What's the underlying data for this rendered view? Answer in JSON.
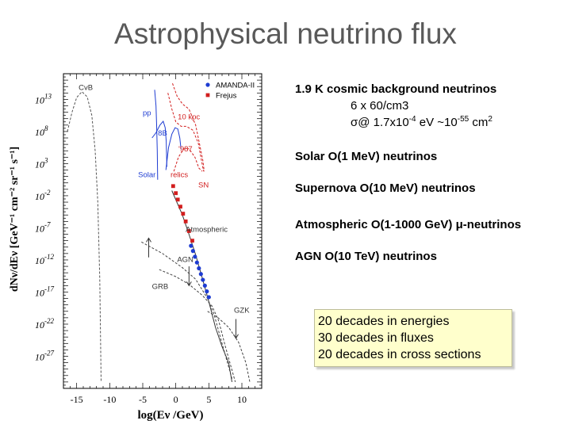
{
  "slide": {
    "title": "Astrophysical neutrino flux"
  },
  "notes": {
    "cosmic": {
      "heading": "1.9 K cosmic background neutrinos",
      "line1": "6 x 60/cm3",
      "line2_prefix": "σ@ 1.7x10",
      "line2_exp1": "-4",
      "line2_mid": " eV ~10",
      "line2_exp2": "-55",
      "line2_suffix": " cm",
      "line2_exp3": "2"
    },
    "solar": "Solar O(1 MeV) neutrinos",
    "supernova": "Supernova O(10 MeV) neutrinos",
    "atmospheric": "Atmospheric O(1-1000 GeV) μ-neutrinos",
    "agn": "AGN O(10 TeV) neutrinos"
  },
  "callout": {
    "line1": "20 decades in energies",
    "line2": "30 decades in fluxes",
    "line3": "20 decades in cross sections"
  },
  "colors": {
    "title": "#595959",
    "blue": "#1e3cd2",
    "red": "#d21e1e",
    "callout_bg": "#ffffcc"
  },
  "chart_data": {
    "type": "line",
    "xlabel": "log(Eν /GeV)",
    "ylabel": "dNν/dEν [GeV⁻¹ cm⁻² sr⁻¹ s⁻¹]",
    "xlim": [
      -17,
      13
    ],
    "ylim": [
      -32,
      17
    ],
    "xticks": [
      -15,
      -10,
      -5,
      0,
      5,
      10
    ],
    "yticks": [
      {
        "value": 13,
        "mantissa": "10",
        "exp": "13"
      },
      {
        "value": 8,
        "mantissa": "10",
        "exp": "8"
      },
      {
        "value": 3,
        "mantissa": "10",
        "exp": "3"
      },
      {
        "value": -2,
        "mantissa": "10",
        "exp": "-2"
      },
      {
        "value": -7,
        "mantissa": "10",
        "exp": "-7"
      },
      {
        "value": -12,
        "mantissa": "10",
        "exp": "-12"
      },
      {
        "value": -17,
        "mantissa": "10",
        "exp": "-17"
      },
      {
        "value": -22,
        "mantissa": "10",
        "exp": "-22"
      },
      {
        "value": -27,
        "mantissa": "10",
        "exp": "-27"
      }
    ],
    "legend_position": "top-right",
    "legend": [
      {
        "name": "AMANDA-II",
        "marker": "circle",
        "color": "#1e3cd2"
      },
      {
        "name": "Frejus",
        "marker": "square",
        "color": "#d21e1e"
      }
    ],
    "curves": [
      {
        "label": "CvB",
        "color": "#555555",
        "dash": "3,2",
        "points": [
          [
            -16.4,
            8
          ],
          [
            -15.7,
            11
          ],
          [
            -15.0,
            13.3
          ],
          [
            -14.2,
            14.2
          ],
          [
            -13.4,
            13.4
          ],
          [
            -12.7,
            10.5
          ],
          [
            -12.2,
            5
          ],
          [
            -11.8,
            -3
          ],
          [
            -11.5,
            -15
          ],
          [
            -11.3,
            -31
          ]
        ]
      },
      {
        "label": "Solar",
        "color": "#1e3cd2",
        "dash": "",
        "points": [
          [
            -3.6,
            7.0
          ],
          [
            -3.0,
            7.8
          ],
          [
            -2.4,
            9.0
          ],
          [
            -1.9,
            9.6
          ],
          [
            -1.6,
            8.6
          ],
          [
            -1.45,
            6.5
          ],
          [
            -1.35,
            2.5
          ]
        ]
      },
      {
        "label": "pp",
        "color": "#1e3cd2",
        "dash": "",
        "points": [
          [
            -3.2,
            14.5
          ],
          [
            -3.0,
            12.0
          ],
          [
            -2.9,
            9.0
          ],
          [
            -2.8,
            5.0
          ],
          [
            -2.75,
            0.5
          ]
        ]
      },
      {
        "label": "8B",
        "color": "#1e3cd2",
        "dash": "",
        "points": [
          [
            -1.5,
            2
          ],
          [
            -1.1,
            5.5
          ],
          [
            -0.6,
            7.6
          ],
          [
            -0.1,
            8.6
          ],
          [
            0.3,
            8.4
          ],
          [
            0.6,
            7.0
          ],
          [
            0.8,
            5.2
          ]
        ]
      },
      {
        "label": "10 kpc",
        "color": "#d21e1e",
        "dash": "3,2",
        "points": [
          [
            -1.2,
            14
          ],
          [
            -0.6,
            11.5
          ],
          [
            0.0,
            9.5
          ],
          [
            0.8,
            8.8
          ],
          [
            1.6,
            8.8
          ],
          [
            2.6,
            8.2
          ],
          [
            3.4,
            6.2
          ],
          [
            3.8,
            4.0
          ],
          [
            4.2,
            1.8
          ]
        ]
      },
      {
        "label": "987",
        "color": "#d21e1e",
        "dash": "3,2",
        "points": [
          [
            -0.5,
            15.5
          ],
          [
            0.2,
            13.5
          ],
          [
            1.0,
            12.3
          ],
          [
            2.0,
            11.5
          ],
          [
            3.0,
            9.0
          ],
          [
            3.6,
            6.0
          ],
          [
            4.1,
            3.5
          ],
          [
            4.3,
            1.8
          ]
        ]
      },
      {
        "label": "relics",
        "color": "#d21e1e",
        "dash": "3,2",
        "points": [
          [
            -0.3,
            1.8
          ],
          [
            0.4,
            4.0
          ],
          [
            1.2,
            5.3
          ],
          [
            2.0,
            5.3
          ],
          [
            2.9,
            4.0
          ],
          [
            3.5,
            2.3
          ],
          [
            4.0,
            1.8
          ]
        ]
      },
      {
        "label": "Atmospheric",
        "color": "#333333",
        "dash": "",
        "points": [
          [
            -0.6,
            -1.2
          ],
          [
            1.0,
            -5.0
          ],
          [
            2.0,
            -8.0
          ],
          [
            3.0,
            -11.2
          ],
          [
            4.0,
            -14.8
          ],
          [
            5.0,
            -18.5
          ],
          [
            6.0,
            -22.5
          ],
          [
            7.0,
            -25.5
          ],
          [
            8.0,
            -28
          ],
          [
            8.5,
            -31
          ]
        ]
      },
      {
        "label": "GRB",
        "color": "#444444",
        "dash": "3,2",
        "points": [
          [
            -5.2,
            -9.2
          ],
          [
            -2.0,
            -11.0
          ],
          [
            1.0,
            -13.2
          ],
          [
            3.0,
            -15.0
          ],
          [
            4.8,
            -18.0
          ],
          [
            5.8,
            -20.5
          ],
          [
            7.0,
            -25.0
          ],
          [
            8.5,
            -30.5
          ]
        ]
      },
      {
        "label": "AGN",
        "color": "#444444",
        "dash": "3,2",
        "points": [
          [
            -2.5,
            -13.5
          ],
          [
            0.0,
            -14.6
          ],
          [
            2.0,
            -15.8
          ],
          [
            4.0,
            -17.5
          ],
          [
            5.5,
            -19.2
          ],
          [
            6.5,
            -21.5
          ],
          [
            7.5,
            -25.5
          ],
          [
            9.0,
            -31.0
          ]
        ]
      },
      {
        "label": "GZK",
        "color": "#444444",
        "dash": "3,2",
        "points": [
          [
            4.8,
            -20.0
          ],
          [
            6.4,
            -21.0
          ],
          [
            8.0,
            -22.5
          ],
          [
            9.5,
            -24.8
          ],
          [
            10.6,
            -28.0
          ],
          [
            11.2,
            -31.0
          ]
        ]
      }
    ],
    "series": [
      {
        "name": "AMANDA-II",
        "color": "#1e3cd2",
        "marker": "circle",
        "points": [
          [
            2.3,
            -9.8
          ],
          [
            2.6,
            -10.6
          ],
          [
            2.9,
            -11.5
          ],
          [
            3.2,
            -12.4
          ],
          [
            3.5,
            -13.3
          ],
          [
            3.8,
            -14.2
          ],
          [
            4.1,
            -15.1
          ],
          [
            4.4,
            -16.0
          ],
          [
            4.7,
            -16.9
          ],
          [
            5.0,
            -17.8
          ]
        ]
      },
      {
        "name": "Frejus",
        "color": "#d21e1e",
        "marker": "square",
        "points": [
          [
            -0.4,
            -0.5
          ],
          [
            0.0,
            -1.6
          ],
          [
            0.3,
            -2.6
          ],
          [
            0.7,
            -3.7
          ],
          [
            1.1,
            -4.8
          ],
          [
            1.5,
            -6.0
          ],
          [
            2.0,
            -7.5
          ],
          [
            2.5,
            -9.0
          ]
        ]
      }
    ],
    "annotations": [
      {
        "text": "CvB",
        "x": -14.7,
        "y": 14.5,
        "color": "#333333"
      },
      {
        "text": "pp",
        "x": -5.0,
        "y": 10.5,
        "color": "#1e3cd2"
      },
      {
        "text": "8B",
        "x": -2.7,
        "y": 7.4,
        "color": "#1e3cd2"
      },
      {
        "text": "Solar",
        "x": -5.7,
        "y": 0.9,
        "color": "#1e3cd2"
      },
      {
        "text": "10 kpc",
        "x": 0.3,
        "y": 9.9,
        "color": "#d21e1e"
      },
      {
        "text": "'987",
        "x": 0.4,
        "y": 4.9,
        "color": "#d21e1e"
      },
      {
        "text": "relics",
        "x": -0.8,
        "y": 0.9,
        "color": "#d21e1e"
      },
      {
        "text": "SN",
        "x": 3.4,
        "y": -0.7,
        "color": "#d21e1e"
      },
      {
        "text": "Atmospheric",
        "x": 1.5,
        "y": -7.6,
        "color": "#333333"
      },
      {
        "text": "AGN",
        "x": 0.2,
        "y": -12.3,
        "color": "#333333"
      },
      {
        "text": "GRB",
        "x": -3.6,
        "y": -16.5,
        "color": "#333333"
      },
      {
        "text": "GZK",
        "x": 8.8,
        "y": -20.2,
        "color": "#333333"
      }
    ],
    "arrows": [
      {
        "label": "GRB",
        "x": -4.1,
        "from": -11.6,
        "to": -8.6
      },
      {
        "label": "AGN",
        "x": 2.0,
        "from": -13.0,
        "to": -16.0
      },
      {
        "label": "GZK",
        "x": 9.1,
        "from": -21.2,
        "to": -24.2
      }
    ]
  }
}
